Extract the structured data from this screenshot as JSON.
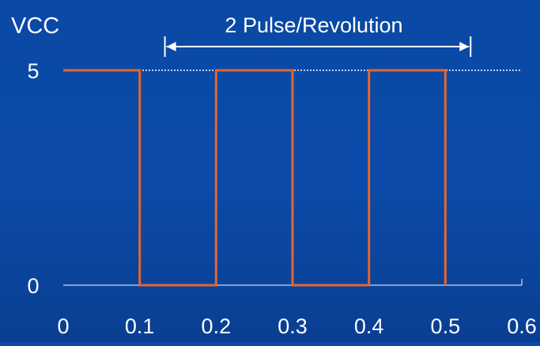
{
  "chart_data": {
    "type": "line",
    "title": "",
    "ylabel": "VCC",
    "xlabel": "",
    "annotation": "2 Pulse/Revolution",
    "x_ticks": [
      "0",
      "0.1",
      "0.2",
      "0.3",
      "0.4",
      "0.5",
      "0.6"
    ],
    "y_ticks": [
      "0",
      "5"
    ],
    "xlim": [
      0,
      0.6
    ],
    "ylim": [
      0,
      5
    ],
    "reference_line": {
      "y": 5,
      "style": "dotted"
    },
    "series": [
      {
        "x": [
          0,
          0.1,
          0.1,
          0.2,
          0.2,
          0.3,
          0.3,
          0.4,
          0.4,
          0.5,
          0.5
        ],
        "y": [
          5,
          5,
          0,
          0,
          5,
          5,
          0,
          0,
          5,
          5,
          0
        ],
        "color": "#e8652a"
      }
    ],
    "annotation_span": [
      0.133,
      0.533
    ],
    "grid": false
  },
  "colors": {
    "background": "#0b4aa8",
    "signal": "#e8652a",
    "text": "#ffffff"
  }
}
